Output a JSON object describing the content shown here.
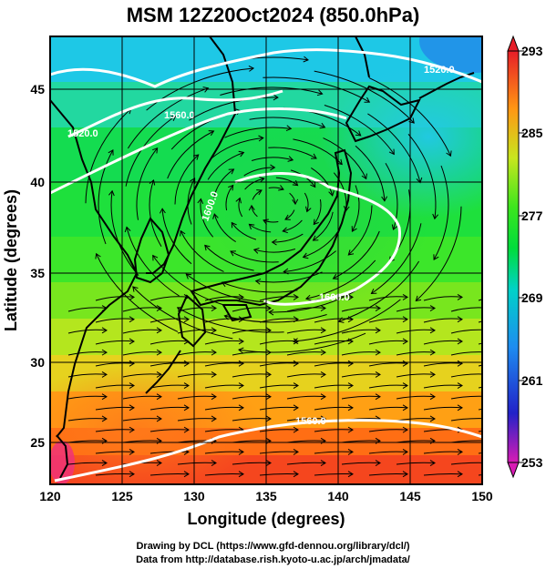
{
  "title": "MSM 12Z20Oct2024 (850.0hPa)",
  "x_axis": {
    "label": "Longitude (degrees)",
    "range": [
      120,
      150
    ],
    "ticks": [
      "120",
      "125",
      "130",
      "135",
      "140",
      "145",
      "150"
    ]
  },
  "y_axis": {
    "label": "Latitude  (degrees)",
    "range": [
      22.5,
      47.5
    ],
    "ticks": [
      "25",
      "30",
      "35",
      "40",
      "45"
    ]
  },
  "colorbar": {
    "range": [
      253,
      293
    ],
    "ticks": [
      "293",
      "285",
      "277",
      "269",
      "261",
      "253"
    ],
    "palette": [
      "#d81bb4",
      "#2222c8",
      "#1e8cf0",
      "#00d2c8",
      "#00dc3c",
      "#9be61e",
      "#f0d21e",
      "#ff6414",
      "#e61e28"
    ]
  },
  "contours": {
    "labels": [
      "1520.0",
      "1520.0",
      "1560.0",
      "1600.0",
      "1600.0",
      "1560.0"
    ],
    "color": "#ffffff"
  },
  "credits": {
    "line1": "Drawing by DCL (https://www.gfd-dennou.org/library/dcl/)",
    "line2": "Data from http://database.rish.kyoto-u.ac.jp/arch/jmadata/"
  }
}
